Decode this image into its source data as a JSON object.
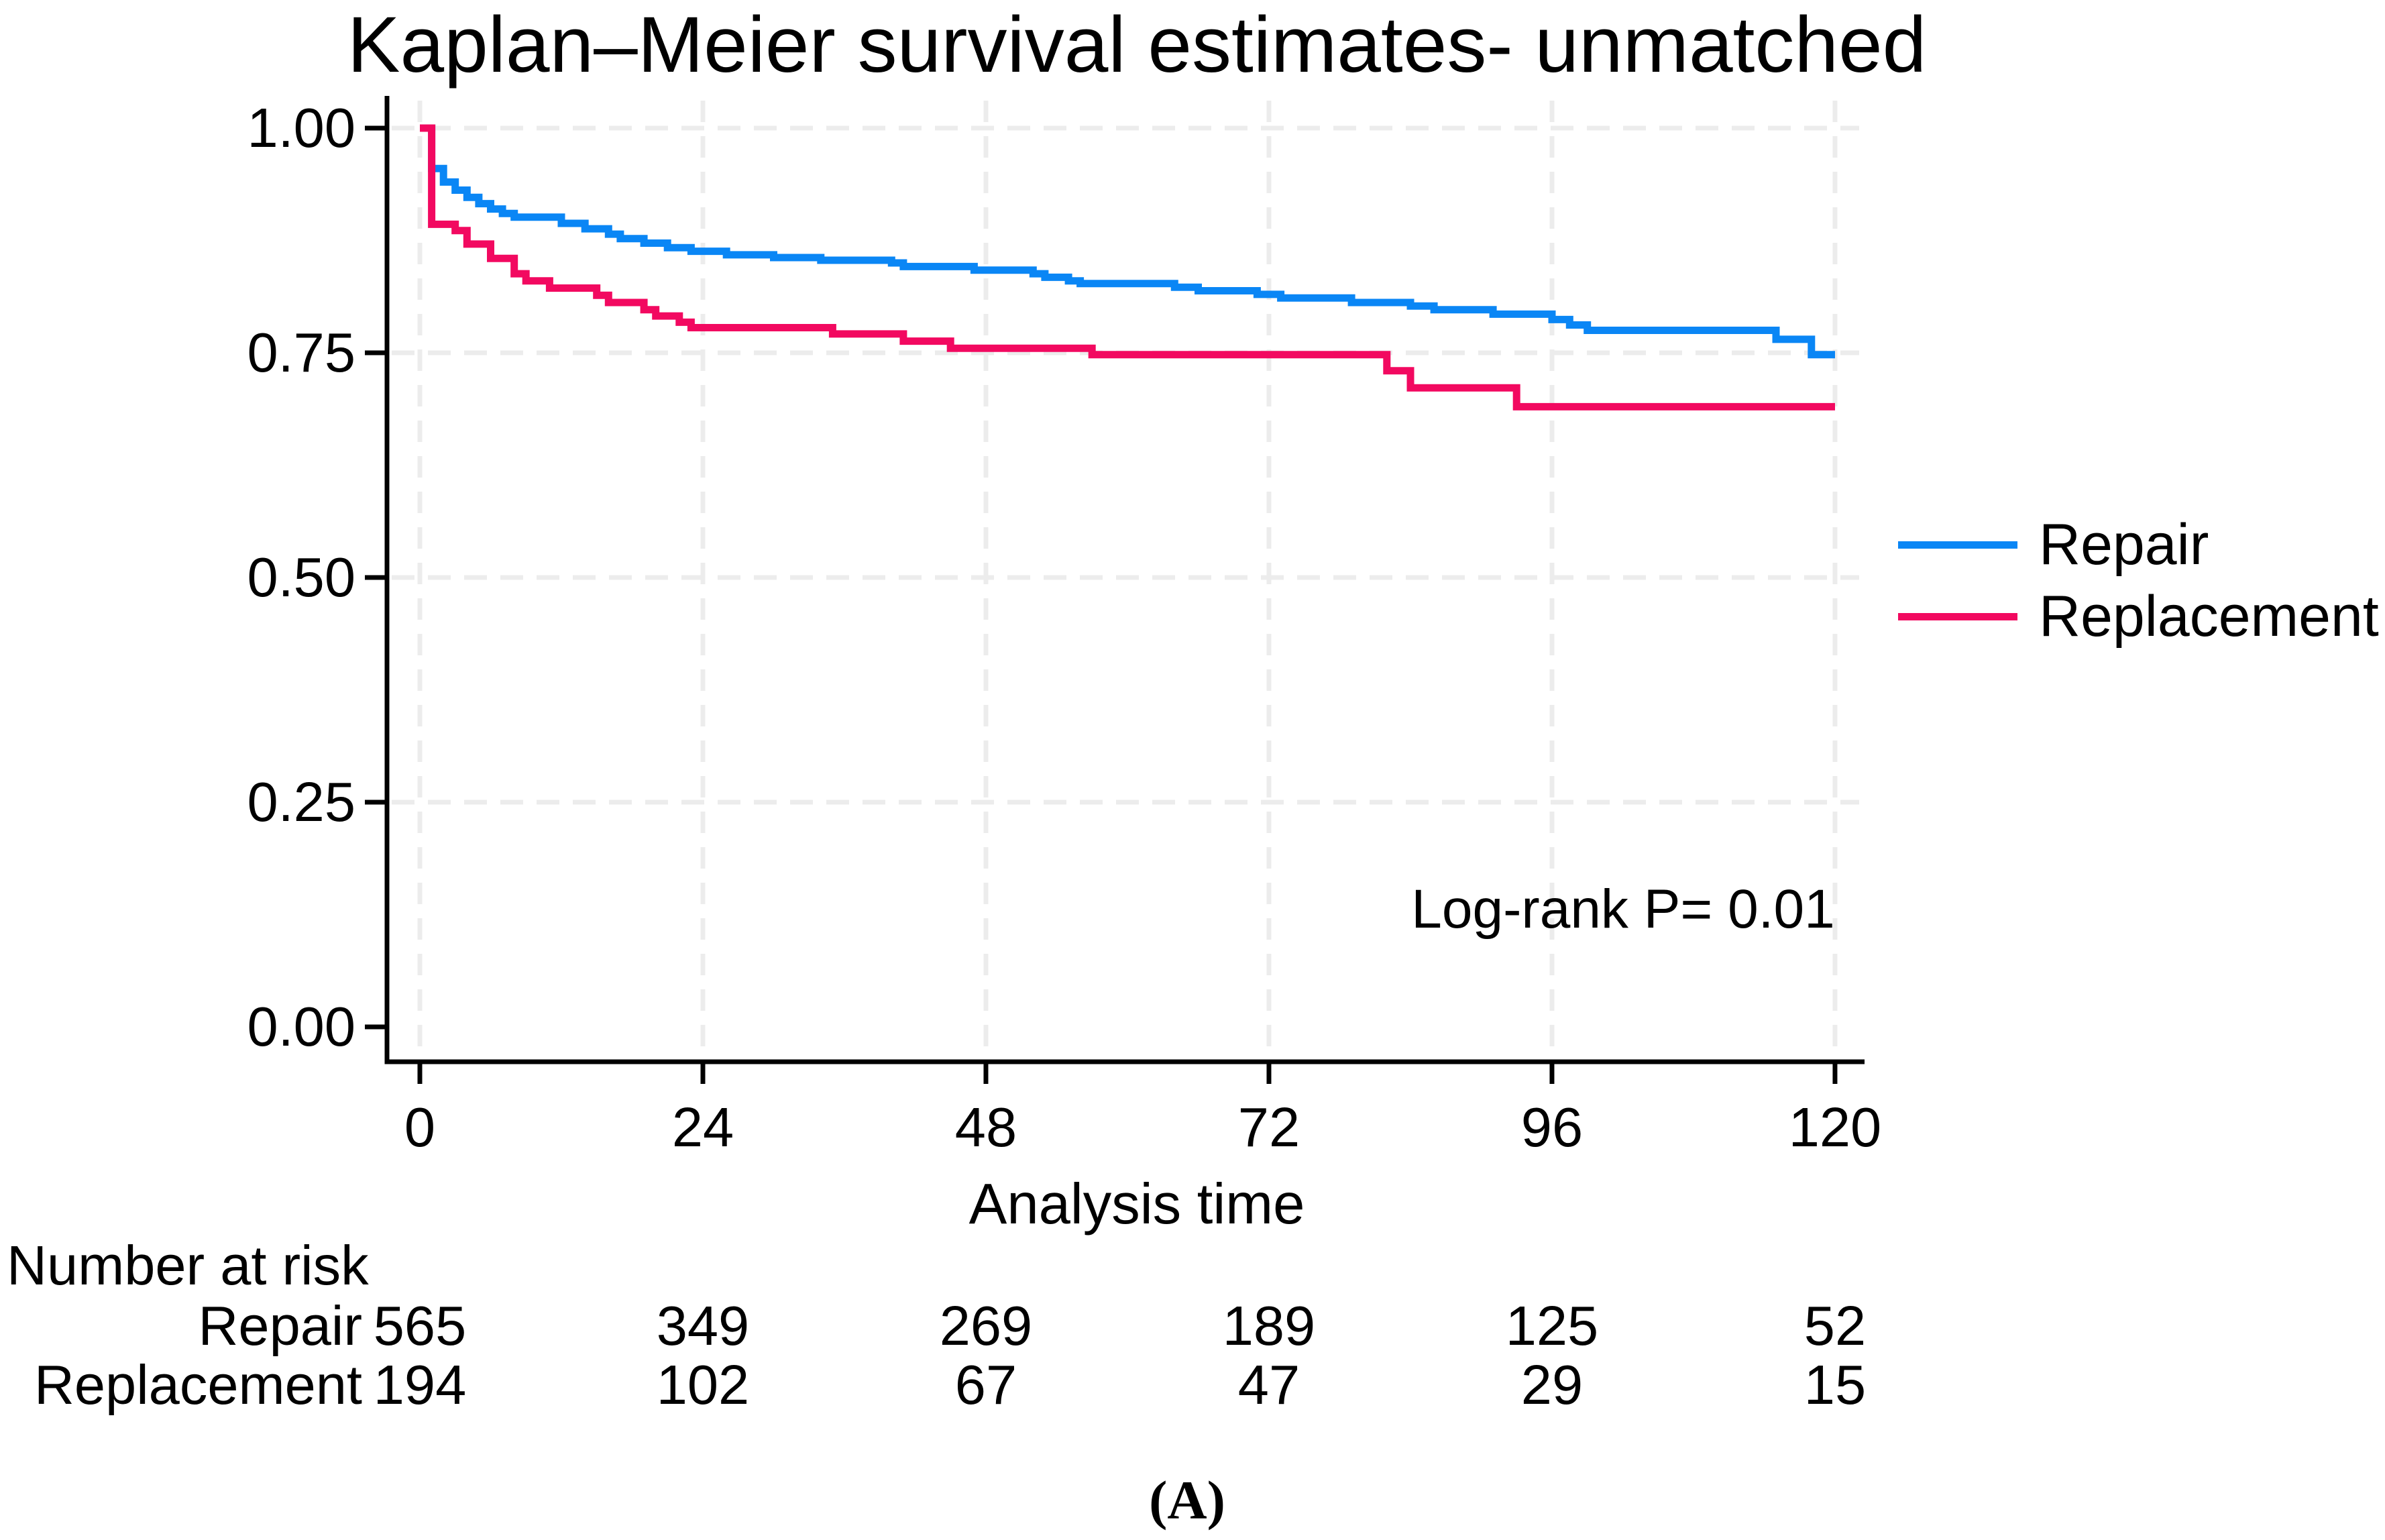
{
  "title": "Kaplan–Meier survival estimates- unmatched",
  "annotation": "Log-rank P= 0.01",
  "caption": "(A)",
  "colors": {
    "repair": "#0a86f5",
    "replacement": "#f20960",
    "grid": "#ececec",
    "axis": "#000000",
    "background": "#ffffff"
  },
  "axes": {
    "x_label": "Analysis time",
    "x_tick_labels": [
      "0",
      "24",
      "48",
      "72",
      "96",
      "120"
    ],
    "x_tick_values": [
      0,
      24,
      48,
      72,
      96,
      120
    ],
    "y_tick_labels": [
      "0.00",
      "0.25",
      "0.50",
      "0.75",
      "1.00"
    ],
    "y_tick_values": [
      0,
      0.25,
      0.5,
      0.75,
      1
    ]
  },
  "legend": {
    "items": [
      {
        "label": "Repair",
        "color": "#0a86f5"
      },
      {
        "label": "Replacement",
        "color": "#f20960"
      }
    ]
  },
  "risk_table": {
    "title": "Number at risk",
    "times": [
      0,
      24,
      48,
      72,
      96,
      120
    ],
    "rows": [
      {
        "label": "Repair",
        "counts": [
          "565",
          "349",
          "269",
          "189",
          "125",
          "52"
        ]
      },
      {
        "label": "Replacement",
        "counts": [
          "194",
          "102",
          "67",
          "47",
          "29",
          "15"
        ]
      }
    ]
  },
  "chart_data": {
    "type": "line",
    "subtype": "kaplan-meier-step",
    "title": "Kaplan–Meier survival estimates- unmatched",
    "xlabel": "Analysis time",
    "ylabel": "",
    "xlim": [
      0,
      120
    ],
    "ylim": [
      0,
      1
    ],
    "xticks": [
      0,
      24,
      48,
      72,
      96,
      120
    ],
    "yticks": [
      0,
      0.25,
      0.5,
      0.75,
      1
    ],
    "grid": true,
    "legend_position": "right",
    "annotation": "Log-rank P= 0.01",
    "series": [
      {
        "name": "Repair",
        "color": "#0a86f5",
        "steps": [
          [
            0,
            1.0
          ],
          [
            1,
            0.955
          ],
          [
            2,
            0.94
          ],
          [
            3,
            0.931
          ],
          [
            4,
            0.923
          ],
          [
            5,
            0.916
          ],
          [
            6,
            0.91
          ],
          [
            7,
            0.905
          ],
          [
            8,
            0.901
          ],
          [
            12,
            0.894
          ],
          [
            14,
            0.888
          ],
          [
            16,
            0.882
          ],
          [
            17,
            0.877
          ],
          [
            19,
            0.872
          ],
          [
            21,
            0.867
          ],
          [
            23,
            0.863
          ],
          [
            26,
            0.859
          ],
          [
            30,
            0.856
          ],
          [
            34,
            0.853
          ],
          [
            40,
            0.85
          ],
          [
            41,
            0.846
          ],
          [
            47,
            0.842
          ],
          [
            52,
            0.838
          ],
          [
            53,
            0.834
          ],
          [
            55,
            0.83
          ],
          [
            56,
            0.827
          ],
          [
            64,
            0.823
          ],
          [
            66,
            0.819
          ],
          [
            71,
            0.815
          ],
          [
            73,
            0.811
          ],
          [
            79,
            0.806
          ],
          [
            84,
            0.802
          ],
          [
            86,
            0.798
          ],
          [
            91,
            0.793
          ],
          [
            96,
            0.787
          ],
          [
            97.5,
            0.781
          ],
          [
            99,
            0.775
          ],
          [
            115,
            0.765
          ],
          [
            118,
            0.748
          ]
        ],
        "end_time": 120,
        "number_at_risk": [
          565,
          349,
          269,
          189,
          125,
          52
        ]
      },
      {
        "name": "Replacement",
        "color": "#f20960",
        "steps": [
          [
            0,
            1.0
          ],
          [
            1,
            0.893
          ],
          [
            3,
            0.886
          ],
          [
            4,
            0.871
          ],
          [
            6,
            0.855
          ],
          [
            8,
            0.838
          ],
          [
            9,
            0.83
          ],
          [
            11,
            0.822
          ],
          [
            15,
            0.814
          ],
          [
            16,
            0.806
          ],
          [
            19,
            0.798
          ],
          [
            20,
            0.791
          ],
          [
            22,
            0.784
          ],
          [
            23,
            0.778
          ],
          [
            35,
            0.771
          ],
          [
            41,
            0.763
          ],
          [
            45,
            0.755
          ],
          [
            57,
            0.748
          ],
          [
            82,
            0.73
          ],
          [
            84,
            0.711
          ],
          [
            93,
            0.69
          ]
        ],
        "end_time": 120,
        "number_at_risk": [
          194,
          102,
          67,
          47,
          29,
          15
        ]
      }
    ]
  }
}
